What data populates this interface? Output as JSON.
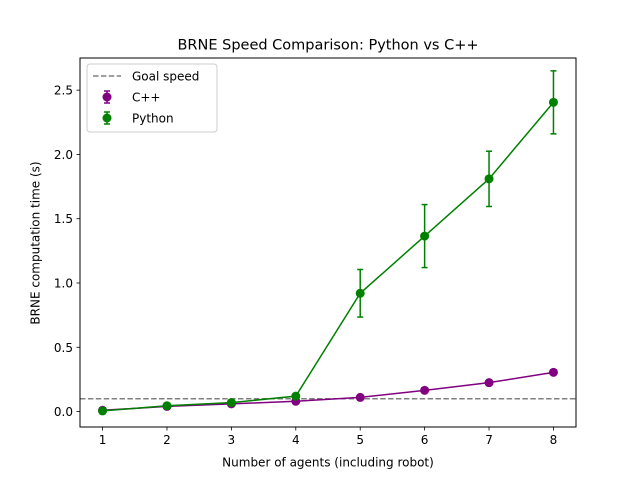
{
  "chart_data": {
    "type": "line",
    "title": "BRNE Speed Comparison: Python vs C++",
    "xlabel": "Number of agents (including robot)",
    "ylabel": "BRNE computation time (s)",
    "xlim": [
      0.65,
      8.35
    ],
    "ylim": [
      -0.12,
      2.75
    ],
    "x": [
      1,
      2,
      3,
      4,
      5,
      6,
      7,
      8
    ],
    "x_ticks": [
      "1",
      "2",
      "3",
      "4",
      "5",
      "6",
      "7",
      "8"
    ],
    "y_ticks": [
      0.0,
      0.5,
      1.0,
      1.5,
      2.0,
      2.5
    ],
    "y_tick_labels": [
      "0.0",
      "0.5",
      "1.0",
      "1.5",
      "2.0",
      "2.5"
    ],
    "grid": false,
    "legend_position": "top-left",
    "reference_line": {
      "name": "Goal speed",
      "y": 0.1,
      "color": "#808080",
      "style": "dashed"
    },
    "series": [
      {
        "name": "C++",
        "color": "#800080",
        "values": [
          0.01,
          0.04,
          0.06,
          0.08,
          0.11,
          0.165,
          0.225,
          0.305
        ],
        "errors": [
          0.005,
          0.005,
          0.005,
          0.005,
          0.008,
          0.01,
          0.012,
          0.015
        ]
      },
      {
        "name": "Python",
        "color": "#008000",
        "values": [
          0.005,
          0.045,
          0.07,
          0.12,
          0.92,
          1.365,
          1.81,
          2.405
        ],
        "errors": [
          0.005,
          0.008,
          0.01,
          0.02,
          0.185,
          0.245,
          0.215,
          0.245
        ]
      }
    ]
  }
}
